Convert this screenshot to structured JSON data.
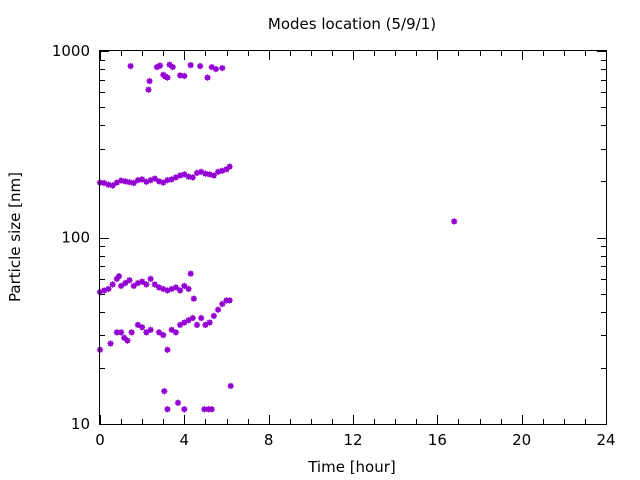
{
  "chart_data": {
    "type": "scatter",
    "title": "Modes location (5/9/1)",
    "xlabel": "Time [hour]",
    "ylabel": "Particle size [nm]",
    "xlim": [
      0,
      24
    ],
    "ylim": [
      10,
      1000
    ],
    "y_scale": "log",
    "grid": false,
    "legend": "none",
    "x_ticks": [
      0,
      4,
      8,
      12,
      16,
      20,
      24
    ],
    "x_tick_labels": [
      "0",
      "4",
      "8",
      "12",
      "16",
      "20",
      "24"
    ],
    "y_ticks": [
      10,
      100,
      1000
    ],
    "y_tick_labels": [
      "10",
      "100",
      "1000"
    ],
    "marker_color": "#9400d3",
    "points": [
      [
        1.45,
        830
      ],
      [
        2.3,
        620
      ],
      [
        2.35,
        690
      ],
      [
        2.7,
        820
      ],
      [
        2.85,
        835
      ],
      [
        3.0,
        745
      ],
      [
        3.1,
        730
      ],
      [
        3.2,
        720
      ],
      [
        3.3,
        845
      ],
      [
        3.45,
        820
      ],
      [
        3.8,
        740
      ],
      [
        4.0,
        735
      ],
      [
        4.3,
        840
      ],
      [
        4.75,
        830
      ],
      [
        5.1,
        720
      ],
      [
        5.3,
        820
      ],
      [
        5.5,
        800
      ],
      [
        5.8,
        810
      ],
      [
        0.0,
        197
      ],
      [
        0.2,
        196
      ],
      [
        0.4,
        192
      ],
      [
        0.6,
        190
      ],
      [
        0.8,
        197
      ],
      [
        1.0,
        202
      ],
      [
        1.2,
        200
      ],
      [
        1.4,
        198
      ],
      [
        1.6,
        196
      ],
      [
        1.8,
        203
      ],
      [
        2.0,
        205
      ],
      [
        2.2,
        199
      ],
      [
        2.4,
        203
      ],
      [
        2.6,
        207
      ],
      [
        2.8,
        200
      ],
      [
        3.0,
        197
      ],
      [
        3.2,
        203
      ],
      [
        3.4,
        205
      ],
      [
        3.6,
        210
      ],
      [
        3.8,
        215
      ],
      [
        4.0,
        218
      ],
      [
        4.2,
        212
      ],
      [
        4.4,
        210
      ],
      [
        4.6,
        222
      ],
      [
        4.8,
        225
      ],
      [
        5.0,
        220
      ],
      [
        5.2,
        218
      ],
      [
        5.4,
        215
      ],
      [
        5.6,
        225
      ],
      [
        5.8,
        228
      ],
      [
        6.0,
        232
      ],
      [
        6.15,
        240
      ],
      [
        0.0,
        51
      ],
      [
        0.2,
        52
      ],
      [
        0.4,
        53
      ],
      [
        0.6,
        56
      ],
      [
        0.8,
        60
      ],
      [
        0.9,
        62
      ],
      [
        1.0,
        55
      ],
      [
        1.2,
        57
      ],
      [
        1.4,
        59
      ],
      [
        1.6,
        55
      ],
      [
        1.8,
        57
      ],
      [
        2.0,
        58
      ],
      [
        2.2,
        56
      ],
      [
        2.4,
        60
      ],
      [
        2.6,
        56
      ],
      [
        2.8,
        54
      ],
      [
        3.0,
        53
      ],
      [
        3.2,
        52
      ],
      [
        3.4,
        53
      ],
      [
        3.6,
        54
      ],
      [
        3.8,
        52
      ],
      [
        4.0,
        55
      ],
      [
        4.2,
        53
      ],
      [
        4.3,
        64
      ],
      [
        4.45,
        47
      ],
      [
        0.0,
        25
      ],
      [
        0.5,
        27
      ],
      [
        0.8,
        31
      ],
      [
        1.0,
        31
      ],
      [
        1.15,
        29
      ],
      [
        1.3,
        28
      ],
      [
        1.5,
        31
      ],
      [
        1.8,
        34
      ],
      [
        2.0,
        33
      ],
      [
        2.2,
        31
      ],
      [
        2.4,
        32
      ],
      [
        2.8,
        31
      ],
      [
        3.0,
        30
      ],
      [
        3.2,
        25
      ],
      [
        3.4,
        32
      ],
      [
        3.6,
        31
      ],
      [
        3.8,
        34
      ],
      [
        4.0,
        35
      ],
      [
        4.2,
        36
      ],
      [
        4.4,
        37
      ],
      [
        4.6,
        34
      ],
      [
        4.8,
        37
      ],
      [
        5.0,
        34
      ],
      [
        5.2,
        35
      ],
      [
        5.4,
        38
      ],
      [
        5.6,
        41
      ],
      [
        5.8,
        44
      ],
      [
        6.0,
        46
      ],
      [
        6.15,
        46
      ],
      [
        16.8,
        122
      ],
      [
        3.05,
        15
      ],
      [
        3.2,
        12
      ],
      [
        3.7,
        13
      ],
      [
        4.0,
        12
      ],
      [
        4.95,
        12
      ],
      [
        5.15,
        12
      ],
      [
        5.3,
        12
      ],
      [
        6.2,
        16
      ]
    ]
  }
}
